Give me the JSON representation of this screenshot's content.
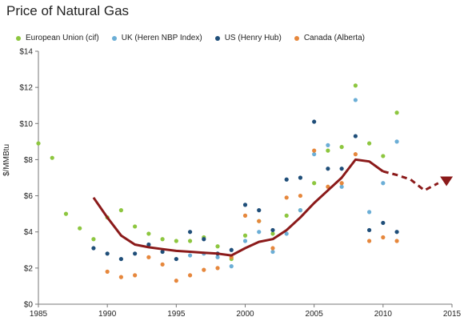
{
  "chart_data": {
    "type": "scatter",
    "title": "Price of Natural Gas",
    "xlabel": "",
    "ylabel": "$/MMBtu",
    "xlim": [
      1985,
      2015
    ],
    "ylim": [
      0,
      14
    ],
    "x_ticks": [
      "1985",
      "1990",
      "1995",
      "2000",
      "2005",
      "2010",
      "2015"
    ],
    "y_ticks": [
      "$0",
      "$2",
      "$4",
      "$6",
      "$8",
      "$10",
      "$12",
      "$14"
    ],
    "grid": false,
    "legend_position": "top",
    "series": [
      {
        "name": "European Union (cif)",
        "color": "#8dc63f",
        "points": [
          [
            1985,
            8.9
          ],
          [
            1986,
            8.1
          ],
          [
            1987,
            5.0
          ],
          [
            1988,
            4.2
          ],
          [
            1989,
            3.6
          ],
          [
            1990,
            4.8
          ],
          [
            1991,
            5.2
          ],
          [
            1992,
            4.3
          ],
          [
            1993,
            3.9
          ],
          [
            1994,
            3.6
          ],
          [
            1995,
            3.5
          ],
          [
            1996,
            3.5
          ],
          [
            1997,
            3.7
          ],
          [
            1998,
            3.2
          ],
          [
            1999,
            2.5
          ],
          [
            2000,
            3.8
          ],
          [
            2001,
            4.6
          ],
          [
            2002,
            3.9
          ],
          [
            2003,
            4.9
          ],
          [
            2004,
            5.2
          ],
          [
            2005,
            6.7
          ],
          [
            2006,
            8.5
          ],
          [
            2007,
            8.7
          ],
          [
            2008,
            12.1
          ],
          [
            2009,
            8.9
          ],
          [
            2010,
            8.2
          ],
          [
            2011,
            10.6
          ]
        ]
      },
      {
        "name": "UK (Heren NBP Index)",
        "color": "#6baed6",
        "points": [
          [
            1996,
            2.7
          ],
          [
            1997,
            2.8
          ],
          [
            1998,
            2.6
          ],
          [
            1999,
            2.1
          ],
          [
            2000,
            3.5
          ],
          [
            2001,
            4.0
          ],
          [
            2002,
            2.9
          ],
          [
            2003,
            3.9
          ],
          [
            2004,
            5.2
          ],
          [
            2005,
            8.3
          ],
          [
            2006,
            8.8
          ],
          [
            2007,
            6.5
          ],
          [
            2008,
            11.3
          ],
          [
            2009,
            5.1
          ],
          [
            2010,
            6.7
          ],
          [
            2011,
            9.0
          ]
        ]
      },
      {
        "name": "US (Henry Hub)",
        "color": "#1f4e79",
        "points": [
          [
            1989,
            3.1
          ],
          [
            1990,
            2.8
          ],
          [
            1991,
            2.5
          ],
          [
            1992,
            2.8
          ],
          [
            1993,
            3.3
          ],
          [
            1994,
            2.9
          ],
          [
            1995,
            2.5
          ],
          [
            1996,
            4.0
          ],
          [
            1997,
            3.6
          ],
          [
            1998,
            2.8
          ],
          [
            1999,
            3.0
          ],
          [
            2000,
            5.5
          ],
          [
            2001,
            5.2
          ],
          [
            2002,
            4.1
          ],
          [
            2003,
            6.9
          ],
          [
            2004,
            7.0
          ],
          [
            2005,
            10.1
          ],
          [
            2006,
            7.5
          ],
          [
            2007,
            7.5
          ],
          [
            2008,
            9.3
          ],
          [
            2009,
            4.1
          ],
          [
            2010,
            4.5
          ],
          [
            2011,
            4.0
          ]
        ]
      },
      {
        "name": "Canada (Alberta)",
        "color": "#e6873c",
        "points": [
          [
            1990,
            1.8
          ],
          [
            1991,
            1.5
          ],
          [
            1992,
            1.6
          ],
          [
            1993,
            2.6
          ],
          [
            1994,
            2.2
          ],
          [
            1995,
            1.3
          ],
          [
            1996,
            1.6
          ],
          [
            1997,
            1.9
          ],
          [
            1998,
            2.0
          ],
          [
            1999,
            2.6
          ],
          [
            2000,
            4.9
          ],
          [
            2001,
            4.6
          ],
          [
            2002,
            3.1
          ],
          [
            2003,
            5.9
          ],
          [
            2004,
            6.0
          ],
          [
            2005,
            8.5
          ],
          [
            2006,
            6.5
          ],
          [
            2007,
            6.7
          ],
          [
            2008,
            8.3
          ],
          [
            2009,
            3.5
          ],
          [
            2010,
            3.7
          ],
          [
            2011,
            3.5
          ]
        ]
      }
    ],
    "trend_line": {
      "color": "#8b1a1a",
      "points": [
        [
          1989,
          5.9
        ],
        [
          1990,
          4.8
        ],
        [
          1991,
          3.8
        ],
        [
          1992,
          3.3
        ],
        [
          1993,
          3.15
        ],
        [
          1994,
          3.05
        ],
        [
          1995,
          2.95
        ],
        [
          1996,
          2.9
        ],
        [
          1997,
          2.85
        ],
        [
          1998,
          2.8
        ],
        [
          1999,
          2.7
        ],
        [
          2000,
          3.1
        ],
        [
          2001,
          3.45
        ],
        [
          2002,
          3.6
        ],
        [
          2003,
          4.1
        ],
        [
          2004,
          4.8
        ],
        [
          2005,
          5.6
        ],
        [
          2006,
          6.3
        ],
        [
          2007,
          7.0
        ],
        [
          2008,
          8.0
        ],
        [
          2009,
          7.9
        ],
        [
          2010,
          7.35
        ]
      ],
      "projection": [
        [
          2010,
          7.35
        ],
        [
          2011,
          7.15
        ],
        [
          2012,
          6.9
        ],
        [
          2013,
          6.3
        ],
        [
          2014,
          6.7
        ]
      ],
      "arrow_end": [
        2014.6,
        6.8
      ]
    }
  }
}
